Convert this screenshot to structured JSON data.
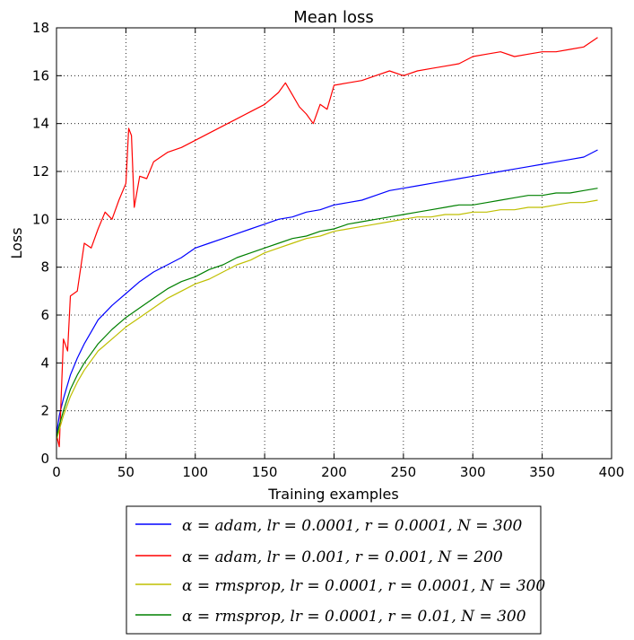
{
  "chart_data": {
    "type": "line",
    "title": "Mean loss",
    "xlabel": "Training examples",
    "ylabel": "Loss",
    "xlim": [
      0,
      400
    ],
    "ylim": [
      0,
      18
    ],
    "xticks": [
      "0",
      "50",
      "100",
      "150",
      "200",
      "250",
      "300",
      "350",
      "400"
    ],
    "yticks": [
      "0",
      "2",
      "4",
      "6",
      "8",
      "10",
      "12",
      "14",
      "16",
      "18"
    ],
    "grid": true,
    "legend_position": "below",
    "series": [
      {
        "name": "α = adam, lr = 0.0001, r = 0.0001, N = 300",
        "color": "#0000ff",
        "x": [
          0,
          2,
          5,
          10,
          15,
          20,
          25,
          30,
          40,
          50,
          60,
          70,
          80,
          90,
          100,
          110,
          120,
          130,
          140,
          150,
          160,
          170,
          180,
          190,
          200,
          210,
          220,
          230,
          240,
          250,
          260,
          270,
          280,
          290,
          300,
          310,
          320,
          330,
          340,
          350,
          360,
          370,
          380,
          390
        ],
        "y": [
          1.0,
          1.8,
          2.5,
          3.5,
          4.2,
          4.8,
          5.3,
          5.8,
          6.4,
          6.9,
          7.4,
          7.8,
          8.1,
          8.4,
          8.8,
          9.0,
          9.2,
          9.4,
          9.6,
          9.8,
          10.0,
          10.1,
          10.3,
          10.4,
          10.6,
          10.7,
          10.8,
          11.0,
          11.2,
          11.3,
          11.4,
          11.5,
          11.6,
          11.7,
          11.8,
          11.9,
          12.0,
          12.1,
          12.2,
          12.3,
          12.4,
          12.5,
          12.6,
          12.9
        ]
      },
      {
        "name": "α = adam, lr = 0.001, r = 0.001, N = 200",
        "color": "#ff0000",
        "x": [
          0,
          2,
          5,
          8,
          10,
          15,
          20,
          25,
          30,
          35,
          40,
          45,
          50,
          52,
          54,
          56,
          60,
          65,
          70,
          80,
          90,
          100,
          110,
          120,
          130,
          140,
          150,
          160,
          165,
          170,
          175,
          180,
          185,
          190,
          195,
          200,
          210,
          220,
          230,
          240,
          250,
          260,
          270,
          280,
          290,
          300,
          310,
          320,
          330,
          340,
          350,
          360,
          370,
          380,
          390
        ],
        "y": [
          1.0,
          0.5,
          5.0,
          4.5,
          6.8,
          7.0,
          9.0,
          8.8,
          9.6,
          10.3,
          10.0,
          10.8,
          11.5,
          13.8,
          13.5,
          10.5,
          11.8,
          11.7,
          12.4,
          12.8,
          13.0,
          13.3,
          13.6,
          13.9,
          14.2,
          14.5,
          14.8,
          15.3,
          15.7,
          15.2,
          14.7,
          14.4,
          14.0,
          14.8,
          14.6,
          15.6,
          15.7,
          15.8,
          16.0,
          16.2,
          16.0,
          16.2,
          16.3,
          16.4,
          16.5,
          16.8,
          16.9,
          17.0,
          16.8,
          16.9,
          17.0,
          17.0,
          17.1,
          17.2,
          17.6
        ]
      },
      {
        "name": "α = rmsprop, lr = 0.0001, r = 0.0001, N = 300",
        "color": "#bfbf00",
        "x": [
          0,
          2,
          5,
          10,
          15,
          20,
          25,
          30,
          40,
          50,
          60,
          70,
          80,
          90,
          100,
          110,
          120,
          130,
          140,
          150,
          160,
          170,
          180,
          190,
          200,
          210,
          220,
          230,
          240,
          250,
          260,
          270,
          280,
          290,
          300,
          310,
          320,
          330,
          340,
          350,
          360,
          370,
          380,
          390
        ],
        "y": [
          0.8,
          1.2,
          1.8,
          2.6,
          3.2,
          3.7,
          4.1,
          4.5,
          5.0,
          5.5,
          5.9,
          6.3,
          6.7,
          7.0,
          7.3,
          7.5,
          7.8,
          8.1,
          8.3,
          8.6,
          8.8,
          9.0,
          9.2,
          9.3,
          9.5,
          9.6,
          9.7,
          9.8,
          9.9,
          10.0,
          10.1,
          10.1,
          10.2,
          10.2,
          10.3,
          10.3,
          10.4,
          10.4,
          10.5,
          10.5,
          10.6,
          10.7,
          10.7,
          10.8
        ]
      },
      {
        "name": "α = rmsprop, lr = 0.0001, r = 0.01, N = 300",
        "color": "#008000",
        "x": [
          0,
          2,
          5,
          10,
          15,
          20,
          25,
          30,
          40,
          50,
          60,
          70,
          80,
          90,
          100,
          110,
          120,
          130,
          140,
          150,
          160,
          170,
          180,
          190,
          200,
          210,
          220,
          230,
          240,
          250,
          260,
          270,
          280,
          290,
          300,
          310,
          320,
          330,
          340,
          350,
          360,
          370,
          380,
          390
        ],
        "y": [
          0.9,
          1.4,
          2.0,
          2.9,
          3.5,
          4.0,
          4.4,
          4.8,
          5.4,
          5.9,
          6.3,
          6.7,
          7.1,
          7.4,
          7.6,
          7.9,
          8.1,
          8.4,
          8.6,
          8.8,
          9.0,
          9.2,
          9.3,
          9.5,
          9.6,
          9.8,
          9.9,
          10.0,
          10.1,
          10.2,
          10.3,
          10.4,
          10.5,
          10.6,
          10.6,
          10.7,
          10.8,
          10.9,
          11.0,
          11.0,
          11.1,
          11.1,
          11.2,
          11.3
        ]
      }
    ]
  }
}
